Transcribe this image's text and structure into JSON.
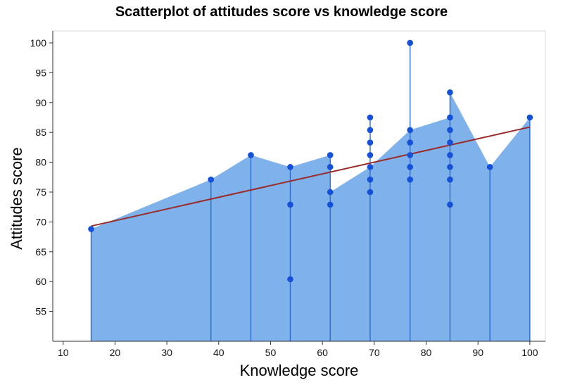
{
  "chart_data": {
    "type": "scatter",
    "title": "Scatterplot of attitudes score vs knowledge score",
    "xlabel": "Knowledge score",
    "ylabel": "Attitudes score",
    "xlim": [
      8,
      103
    ],
    "ylim": [
      50,
      102
    ],
    "xticks": [
      10,
      20,
      30,
      40,
      50,
      60,
      70,
      80,
      90,
      100
    ],
    "yticks": [
      55,
      60,
      65,
      70,
      75,
      80,
      85,
      90,
      95,
      100
    ],
    "grid": false,
    "fill_color": "#7fb2ea",
    "point_color": "#1550d8",
    "drop_line_color": "#2c6bd0",
    "fit_line_color": "#9b2b2b",
    "points": [
      {
        "x": 15.4,
        "y": 68.8
      },
      {
        "x": 38.5,
        "y": 77.1
      },
      {
        "x": 46.2,
        "y": 81.2
      },
      {
        "x": 53.8,
        "y": 79.2
      },
      {
        "x": 53.8,
        "y": 72.9
      },
      {
        "x": 53.8,
        "y": 60.4
      },
      {
        "x": 61.5,
        "y": 81.2
      },
      {
        "x": 61.5,
        "y": 79.2
      },
      {
        "x": 61.5,
        "y": 75.0
      },
      {
        "x": 61.5,
        "y": 72.9
      },
      {
        "x": 69.2,
        "y": 87.5
      },
      {
        "x": 69.2,
        "y": 85.4
      },
      {
        "x": 69.2,
        "y": 83.3
      },
      {
        "x": 69.2,
        "y": 81.2
      },
      {
        "x": 69.2,
        "y": 79.2
      },
      {
        "x": 69.2,
        "y": 77.1
      },
      {
        "x": 69.2,
        "y": 75.0
      },
      {
        "x": 76.9,
        "y": 100.0
      },
      {
        "x": 76.9,
        "y": 85.4
      },
      {
        "x": 76.9,
        "y": 83.3
      },
      {
        "x": 76.9,
        "y": 81.2
      },
      {
        "x": 76.9,
        "y": 79.2
      },
      {
        "x": 76.9,
        "y": 77.1
      },
      {
        "x": 84.6,
        "y": 91.7
      },
      {
        "x": 84.6,
        "y": 87.5
      },
      {
        "x": 84.6,
        "y": 85.4
      },
      {
        "x": 84.6,
        "y": 83.3
      },
      {
        "x": 84.6,
        "y": 81.2
      },
      {
        "x": 84.6,
        "y": 79.2
      },
      {
        "x": 84.6,
        "y": 77.1
      },
      {
        "x": 84.6,
        "y": 72.9
      },
      {
        "x": 92.3,
        "y": 79.2
      },
      {
        "x": 100.0,
        "y": 87.5
      }
    ],
    "area_outline": [
      {
        "x": 15.4,
        "y": 68.8
      },
      {
        "x": 38.5,
        "y": 77.1
      },
      {
        "x": 46.2,
        "y": 81.2
      },
      {
        "x": 53.8,
        "y": 79.2
      },
      {
        "x": 61.5,
        "y": 81.2
      },
      {
        "x": 61.5,
        "y": 75.0
      },
      {
        "x": 69.2,
        "y": 79.2
      },
      {
        "x": 76.9,
        "y": 85.4
      },
      {
        "x": 84.6,
        "y": 87.5
      },
      {
        "x": 84.6,
        "y": 91.7
      },
      {
        "x": 92.3,
        "y": 79.2
      },
      {
        "x": 100.0,
        "y": 87.5
      }
    ],
    "fit_line": {
      "x": [
        15.4,
        100.0
      ],
      "y": [
        69.3,
        85.9
      ]
    }
  }
}
